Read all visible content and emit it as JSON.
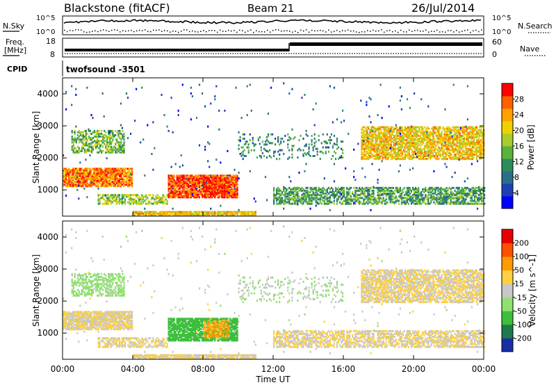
{
  "header": {
    "station": "Blackstone (fitACF)",
    "beam": "Beam 21",
    "date": "26/Jul/2014"
  },
  "noise_panel": {
    "left_label": "N.Sky",
    "right_label": "N.Search",
    "left_ticks": [
      "10^5",
      "10^0"
    ],
    "right_ticks": [
      "10^5",
      "10^0"
    ]
  },
  "freq_panel": {
    "left_label_line1": "Freq.",
    "left_label_line2": "[MHz]",
    "left_ticks": [
      "18",
      "8"
    ],
    "right_ticks": [
      "60",
      "0"
    ],
    "right_label": "Nave",
    "cpid_label": "CPID",
    "cpid_value": "twofsound -3501"
  },
  "chart_data": [
    {
      "type": "heatmap",
      "title": "",
      "ylabel": "Slant Range [km]",
      "yticks": [
        "1000",
        "2000",
        "3000",
        "4000"
      ],
      "ylim": [
        180,
        4500
      ],
      "colorbar_label": "Power [dB]",
      "colorbar_ticks": [
        "4",
        "8",
        "12",
        "16",
        "20",
        "24",
        "28"
      ],
      "colorbar_range": [
        0,
        30
      ],
      "colors": [
        "#0000ff",
        "#1e3fb4",
        "#2a6e8a",
        "#2e8c5a",
        "#5cb33a",
        "#a8cc2e",
        "#f0d000",
        "#ffa000",
        "#ff6000",
        "#ff0000"
      ]
    },
    {
      "type": "heatmap",
      "title": "",
      "ylabel": "Slant Range [km]",
      "yticks": [
        "1000",
        "2000",
        "3000",
        "4000"
      ],
      "ylim": [
        180,
        4500
      ],
      "colorbar_label": "Velocity [m s^-1]",
      "colorbar_ticks": [
        "200",
        "100",
        "50",
        "15",
        "-15",
        "-50",
        "-100",
        "-200"
      ],
      "colorbar_range": [
        -250,
        250
      ],
      "colors": [
        "#1a2ea8",
        "#1e7a4a",
        "#3cbf3c",
        "#8fe070",
        "#c8c8c8",
        "#ffd040",
        "#ff9a00",
        "#ff5000",
        "#e80000"
      ]
    }
  ],
  "x_axis": {
    "label": "Time UT",
    "ticks": [
      "00:00",
      "04:00",
      "08:00",
      "12:00",
      "16:00",
      "20:00",
      "00:00"
    ]
  }
}
